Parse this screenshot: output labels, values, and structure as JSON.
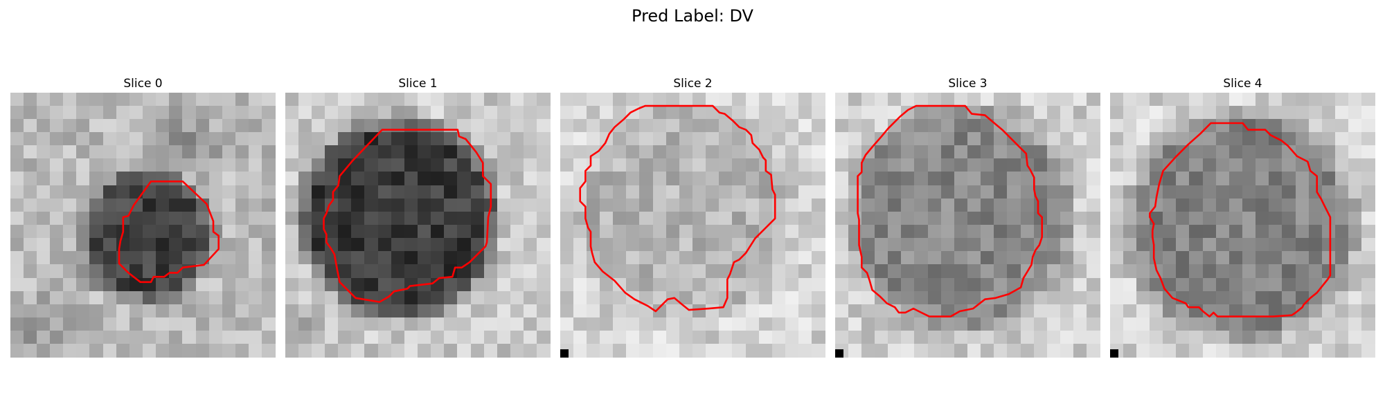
{
  "figure": {
    "suptitle": "Pred Label: DV"
  },
  "slices": [
    {
      "title": "Slice 0",
      "corner_marker": false,
      "lesion": "small-dark",
      "contour": [
        [
          10.6,
          6.7
        ],
        [
          13,
          6.7
        ],
        [
          14.8,
          8.4
        ],
        [
          15.3,
          9.7
        ],
        [
          15.3,
          10.5
        ],
        [
          15.7,
          10.8
        ],
        [
          15.7,
          11.8
        ],
        [
          14.6,
          13
        ],
        [
          13,
          13.2
        ],
        [
          12.6,
          13.6
        ],
        [
          12,
          13.6
        ],
        [
          11.6,
          13.9
        ],
        [
          10.8,
          13.9
        ],
        [
          10.6,
          14.3
        ],
        [
          9.8,
          14.3
        ],
        [
          8.9,
          13.6
        ],
        [
          8.5,
          13.2
        ],
        [
          8.2,
          12.9
        ],
        [
          8.2,
          11.8
        ],
        [
          8.3,
          11.2
        ],
        [
          8.5,
          10.5
        ],
        [
          8.5,
          9.4
        ],
        [
          8.9,
          9.3
        ],
        [
          9.3,
          8.5
        ],
        [
          10.6,
          6.7
        ]
      ]
    },
    {
      "title": "Slice 1",
      "corner_marker": false,
      "lesion": "large-dark",
      "contour": [
        [
          7.3,
          2.8
        ],
        [
          13,
          2.8
        ],
        [
          13.1,
          3.3
        ],
        [
          13.6,
          3.5
        ],
        [
          14.4,
          4.5
        ],
        [
          14.9,
          5.3
        ],
        [
          14.9,
          6.3
        ],
        [
          15.5,
          6.9
        ],
        [
          15.5,
          8.6
        ],
        [
          15.3,
          9.4
        ],
        [
          15.2,
          11.3
        ],
        [
          15.1,
          11.6
        ],
        [
          13.9,
          12.8
        ],
        [
          13.3,
          13.2
        ],
        [
          12.8,
          13.2
        ],
        [
          12.6,
          13.9
        ],
        [
          11.6,
          14
        ],
        [
          11.1,
          14.4
        ],
        [
          9.4,
          14.6
        ],
        [
          9.2,
          14.8
        ],
        [
          8.2,
          15
        ],
        [
          7.8,
          15.4
        ],
        [
          7.1,
          15.8
        ],
        [
          5.3,
          15.5
        ],
        [
          4.1,
          14.3
        ],
        [
          3.9,
          13.3
        ],
        [
          3.7,
          12.2
        ],
        [
          3.4,
          11.7
        ],
        [
          3.1,
          11.3
        ],
        [
          3.1,
          10.7
        ],
        [
          2.9,
          10.3
        ],
        [
          2.9,
          9.5
        ],
        [
          3.1,
          9.1
        ],
        [
          3.3,
          8.5
        ],
        [
          3.6,
          8.1
        ],
        [
          3.6,
          7.5
        ],
        [
          4,
          7
        ],
        [
          4.1,
          6.3
        ],
        [
          5.1,
          5.1
        ],
        [
          7.3,
          2.8
        ]
      ]
    },
    {
      "title": "Slice 2",
      "corner_marker": true,
      "lesion": "faint",
      "contour": [
        [
          9.3,
          1
        ],
        [
          11.5,
          1
        ],
        [
          12,
          1.5
        ],
        [
          12.4,
          1.6
        ],
        [
          13,
          2.1
        ],
        [
          13.5,
          2.6
        ],
        [
          14,
          2.8
        ],
        [
          14.4,
          3.2
        ],
        [
          14.5,
          3.8
        ],
        [
          15,
          4.3
        ],
        [
          15.3,
          4.9
        ],
        [
          15.5,
          5.1
        ],
        [
          15.5,
          5.9
        ],
        [
          15.9,
          6.2
        ],
        [
          16,
          7.3
        ],
        [
          16.2,
          7.7
        ],
        [
          16.2,
          9.5
        ],
        [
          15.5,
          10.2
        ],
        [
          14.7,
          11
        ],
        [
          14,
          12.1
        ],
        [
          13.5,
          12.6
        ],
        [
          13.1,
          12.8
        ],
        [
          12.8,
          13.7
        ],
        [
          12.6,
          14.1
        ],
        [
          12.6,
          14.6
        ],
        [
          12.6,
          15.5
        ],
        [
          12.3,
          16.2
        ],
        [
          11.2,
          16.3
        ],
        [
          9.7,
          16.4
        ],
        [
          9.2,
          16
        ],
        [
          8.6,
          15.5
        ],
        [
          8.1,
          15.6
        ],
        [
          7.6,
          16.1
        ],
        [
          7.2,
          16.5
        ],
        [
          6.6,
          16.1
        ],
        [
          5.6,
          15.6
        ],
        [
          4.9,
          15.1
        ],
        [
          4.1,
          14.2
        ],
        [
          3.2,
          13.5
        ],
        [
          2.6,
          12.8
        ],
        [
          2.4,
          12.1
        ],
        [
          2.3,
          11.6
        ],
        [
          2.3,
          10.5
        ],
        [
          2.1,
          10.2
        ],
        [
          1.9,
          9.5
        ],
        [
          1.9,
          8.6
        ],
        [
          1.5,
          8.2
        ],
        [
          1.5,
          7.2
        ],
        [
          1.9,
          6.7
        ],
        [
          1.9,
          5.9
        ],
        [
          2.3,
          5.5
        ],
        [
          2.3,
          4.8
        ],
        [
          2.9,
          4.4
        ],
        [
          3.4,
          3.8
        ],
        [
          3.7,
          3.1
        ],
        [
          4.1,
          2.6
        ],
        [
          4.8,
          2
        ],
        [
          5.3,
          1.5
        ],
        [
          5.9,
          1.2
        ],
        [
          6.4,
          1
        ],
        [
          9.3,
          1
        ]
      ]
    },
    {
      "title": "Slice 3",
      "corner_marker": true,
      "lesion": "medium-gray",
      "contour": [
        [
          7.1,
          1
        ],
        [
          9.8,
          1
        ],
        [
          10.3,
          1.6
        ],
        [
          11.3,
          1.7
        ],
        [
          12,
          2.3
        ],
        [
          12.6,
          2.8
        ],
        [
          13.4,
          3.6
        ],
        [
          14,
          4.2
        ],
        [
          14.4,
          4.6
        ],
        [
          14.5,
          5.5
        ],
        [
          14.7,
          5.8
        ],
        [
          15,
          6.4
        ],
        [
          15,
          7.3
        ],
        [
          15.1,
          7.8
        ],
        [
          15.3,
          8.2
        ],
        [
          15.3,
          9.1
        ],
        [
          15.6,
          9.4
        ],
        [
          15.6,
          10.9
        ],
        [
          15.4,
          11.5
        ],
        [
          15.1,
          11.9
        ],
        [
          14.9,
          12.4
        ],
        [
          14.8,
          13
        ],
        [
          14.5,
          13.5
        ],
        [
          14.2,
          14
        ],
        [
          14,
          14.7
        ],
        [
          13.1,
          15.2
        ],
        [
          12.1,
          15.5
        ],
        [
          11.3,
          15.6
        ],
        [
          10.4,
          16.3
        ],
        [
          9.4,
          16.5
        ],
        [
          8.7,
          16.9
        ],
        [
          7.1,
          16.9
        ],
        [
          6.3,
          16.5
        ],
        [
          5.9,
          16.3
        ],
        [
          5.3,
          16.6
        ],
        [
          4.8,
          16.6
        ],
        [
          4.5,
          16.2
        ],
        [
          3.9,
          15.9
        ],
        [
          3.4,
          15.4
        ],
        [
          2.8,
          14.9
        ],
        [
          2.6,
          14.2
        ],
        [
          2.4,
          13.6
        ],
        [
          2,
          13.2
        ],
        [
          2,
          12.4
        ],
        [
          1.8,
          11.5
        ],
        [
          1.8,
          10.3
        ],
        [
          1.8,
          9.6
        ],
        [
          1.7,
          9.1
        ],
        [
          1.7,
          7.7
        ],
        [
          1.7,
          6.3
        ],
        [
          2,
          6
        ],
        [
          2,
          5.3
        ],
        [
          2.3,
          4.7
        ],
        [
          2.8,
          4.1
        ],
        [
          3.5,
          3.3
        ],
        [
          4,
          2.7
        ],
        [
          4.9,
          1.8
        ],
        [
          5.5,
          1.3
        ],
        [
          6.1,
          1
        ],
        [
          7.1,
          1
        ]
      ]
    },
    {
      "title": "Slice 4",
      "corner_marker": true,
      "lesion": "medium-gray-large",
      "contour": [
        [
          8.4,
          2.3
        ],
        [
          10,
          2.3
        ],
        [
          10.4,
          2.8
        ],
        [
          11.7,
          2.8
        ],
        [
          12.1,
          3.2
        ],
        [
          12.9,
          3.6
        ],
        [
          13.4,
          4
        ],
        [
          14.1,
          4.8
        ],
        [
          14.9,
          5.2
        ],
        [
          15.1,
          5.9
        ],
        [
          15.6,
          6.3
        ],
        [
          15.6,
          7.5
        ],
        [
          15.9,
          8
        ],
        [
          16.2,
          8.6
        ],
        [
          16.6,
          9.4
        ],
        [
          16.6,
          11.8
        ],
        [
          16.6,
          13.8
        ],
        [
          16.4,
          14.1
        ],
        [
          15.6,
          15.1
        ],
        [
          15.1,
          15.5
        ],
        [
          14.6,
          16
        ],
        [
          14.5,
          16.2
        ],
        [
          14,
          16.6
        ],
        [
          13.7,
          16.8
        ],
        [
          12.3,
          16.9
        ],
        [
          10.7,
          16.9
        ],
        [
          9.9,
          16.9
        ],
        [
          8.1,
          16.9
        ],
        [
          7.8,
          16.6
        ],
        [
          7.5,
          16.9
        ],
        [
          7,
          16.5
        ],
        [
          6.7,
          16.2
        ],
        [
          5.9,
          16.2
        ],
        [
          5.7,
          15.9
        ],
        [
          4.7,
          15.5
        ],
        [
          4.1,
          14.8
        ],
        [
          3.8,
          14
        ],
        [
          3.5,
          13.4
        ],
        [
          3.3,
          12.5
        ],
        [
          3.3,
          11.5
        ],
        [
          3.2,
          10.9
        ],
        [
          3.2,
          10.4
        ],
        [
          3.3,
          9.9
        ],
        [
          3,
          9.4
        ],
        [
          3,
          9.1
        ],
        [
          3.4,
          8.6
        ],
        [
          3.5,
          7.9
        ],
        [
          3.7,
          6.9
        ],
        [
          4,
          5.9
        ],
        [
          5,
          4.8
        ],
        [
          5.9,
          3.9
        ],
        [
          6.8,
          3.1
        ],
        [
          7.6,
          2.3
        ],
        [
          8.4,
          2.3
        ]
      ]
    }
  ],
  "colors": {
    "contour": "#ff0000",
    "background": "#ffffff"
  }
}
